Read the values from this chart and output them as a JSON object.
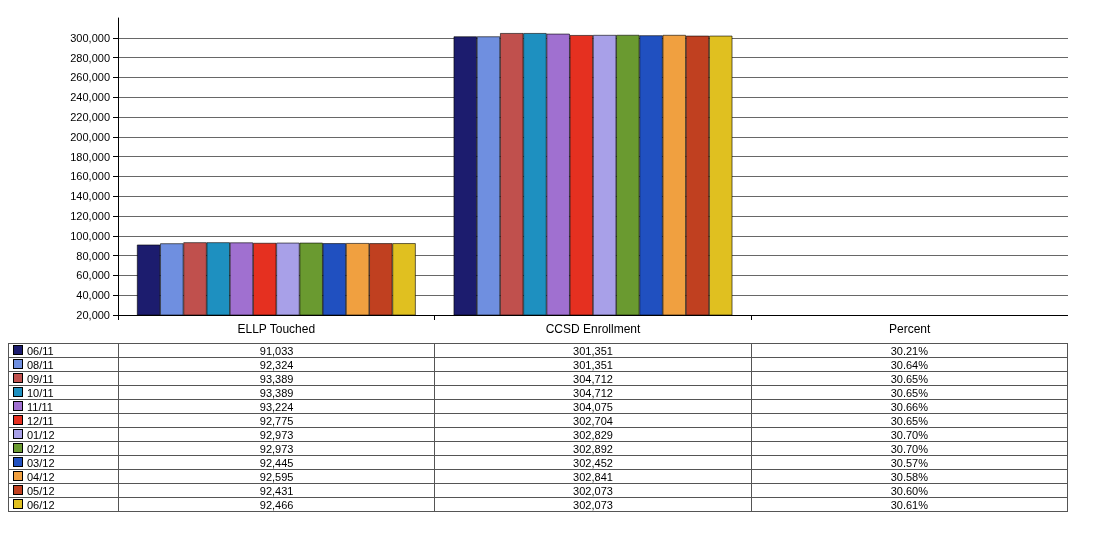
{
  "chart_data": {
    "type": "bar",
    "categories": [
      "ELLP Touched",
      "CCSD Enrollment",
      "Percent"
    ],
    "ylim": [
      20000,
      320000
    ],
    "yticks": [
      {
        "value": 20000,
        "label": "20,000"
      },
      {
        "value": 40000,
        "label": "40,000"
      },
      {
        "value": 60000,
        "label": "60,000"
      },
      {
        "value": 80000,
        "label": "80,000"
      },
      {
        "value": 100000,
        "label": "100,000"
      },
      {
        "value": 120000,
        "label": "120,000"
      },
      {
        "value": 140000,
        "label": "140,000"
      },
      {
        "value": 160000,
        "label": "160,000"
      },
      {
        "value": 180000,
        "label": "180,000"
      },
      {
        "value": 200000,
        "label": "200,000"
      },
      {
        "value": 220000,
        "label": "220,000"
      },
      {
        "value": 240000,
        "label": "240,000"
      },
      {
        "value": 260000,
        "label": "260,000"
      },
      {
        "value": 280000,
        "label": "280,000"
      },
      {
        "value": 300000,
        "label": "300,000"
      }
    ],
    "grid": "y",
    "legend": "bottom",
    "series": [
      {
        "name": "06/11",
        "color": "#1c1c6e",
        "values": [
          91033,
          301351,
          null
        ],
        "value_labels": [
          "91,033",
          "301,351",
          "30.21%"
        ]
      },
      {
        "name": "08/11",
        "color": "#6f8fe0",
        "values": [
          92324,
          301351,
          null
        ],
        "value_labels": [
          "92,324",
          "301,351",
          "30.64%"
        ]
      },
      {
        "name": "09/11",
        "color": "#c0504d",
        "values": [
          93389,
          304712,
          null
        ],
        "value_labels": [
          "93,389",
          "304,712",
          "30.65%"
        ]
      },
      {
        "name": "10/11",
        "color": "#1e90c0",
        "values": [
          93389,
          304712,
          null
        ],
        "value_labels": [
          "93,389",
          "304,712",
          "30.65%"
        ]
      },
      {
        "name": "11/11",
        "color": "#a070d0",
        "values": [
          93224,
          304075,
          null
        ],
        "value_labels": [
          "93,224",
          "304,075",
          "30.66%"
        ]
      },
      {
        "name": "12/11",
        "color": "#e53020",
        "values": [
          92775,
          302704,
          null
        ],
        "value_labels": [
          "92,775",
          "302,704",
          "30.65%"
        ]
      },
      {
        "name": "01/12",
        "color": "#a8a0e8",
        "values": [
          92973,
          302829,
          null
        ],
        "value_labels": [
          "92,973",
          "302,829",
          "30.70%"
        ]
      },
      {
        "name": "02/12",
        "color": "#6a9a30",
        "values": [
          92973,
          302892,
          null
        ],
        "value_labels": [
          "92,973",
          "302,892",
          "30.70%"
        ]
      },
      {
        "name": "03/12",
        "color": "#2050c0",
        "values": [
          92445,
          302452,
          null
        ],
        "value_labels": [
          "92,445",
          "302,452",
          "30.57%"
        ]
      },
      {
        "name": "04/12",
        "color": "#f0a040",
        "values": [
          92595,
          302841,
          null
        ],
        "value_labels": [
          "92,595",
          "302,841",
          "30.58%"
        ]
      },
      {
        "name": "05/12",
        "color": "#c04020",
        "values": [
          92431,
          302073,
          null
        ],
        "value_labels": [
          "92,431",
          "302,073",
          "30.60%"
        ]
      },
      {
        "name": "06/12",
        "color": "#e0c020",
        "values": [
          92466,
          302073,
          null
        ],
        "value_labels": [
          "92,466",
          "302,073",
          "30.61%"
        ]
      }
    ]
  }
}
